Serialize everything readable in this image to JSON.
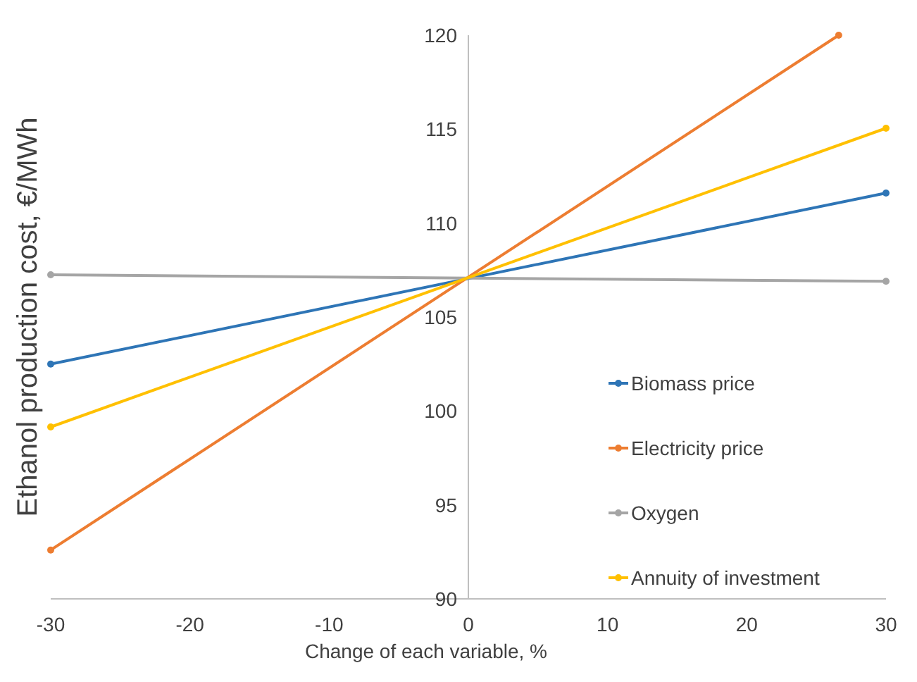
{
  "chart_data": {
    "type": "line",
    "xlabel": "Change of each variable, %",
    "ylabel": "Ethanol production cost, €/MWh",
    "x": [
      -30,
      30
    ],
    "series": [
      {
        "name": "Biomass price",
        "color": "#2e75b6",
        "values": [
          102.5,
          111.6
        ]
      },
      {
        "name": "Electricity price",
        "color": "#ed7d31",
        "x": [
          -30,
          26.6
        ],
        "values": [
          92.6,
          120
        ]
      },
      {
        "name": "Oxygen",
        "color": "#a5a5a5",
        "values": [
          107.25,
          106.9
        ]
      },
      {
        "name": "Annuity of investment",
        "color": "#ffc000",
        "values": [
          99.15,
          115.05
        ]
      }
    ],
    "xlim": [
      -30,
      30
    ],
    "ylim": [
      90,
      120
    ],
    "xticks": [
      -30,
      -20,
      -10,
      0,
      10,
      20,
      30
    ],
    "yticks": [
      90,
      95,
      100,
      105,
      110,
      115,
      120
    ],
    "grid": false,
    "legend": "right",
    "marker": "circle",
    "line_style": "solid"
  }
}
